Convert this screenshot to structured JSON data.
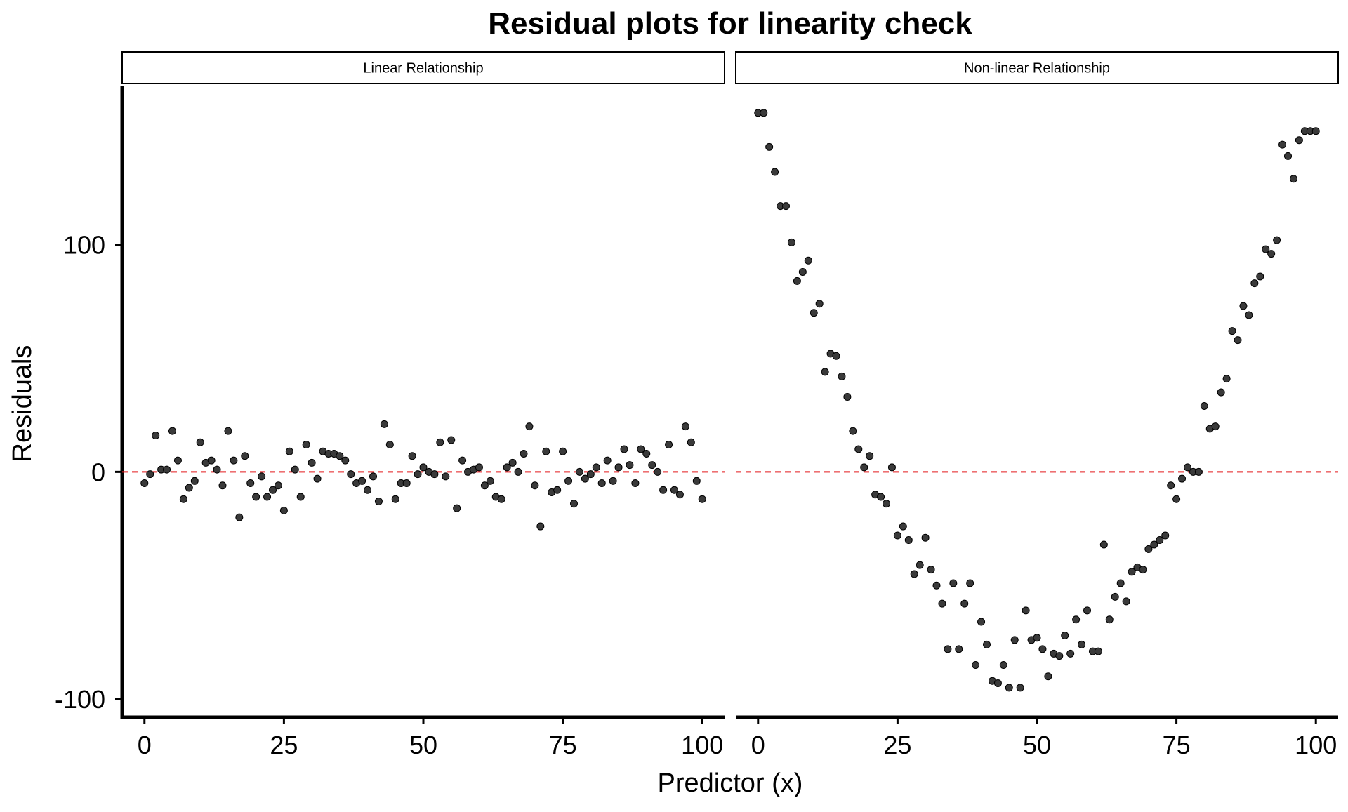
{
  "chart_data": {
    "type": "scatter",
    "title": "Residual plots for linearity check",
    "xlabel": "Predictor (x)",
    "ylabel": "Residuals",
    "xlim": [
      -4,
      104
    ],
    "ylim": [
      -108,
      170
    ],
    "x_ticks": [
      0,
      25,
      50,
      75,
      100
    ],
    "x_tick_labels": [
      "0",
      "25",
      "50",
      "75",
      "100"
    ],
    "y_ticks": [
      -100,
      0,
      100
    ],
    "y_tick_labels": [
      "-100",
      "0",
      "100"
    ],
    "reference_line": {
      "y": 0,
      "style": "dashed",
      "color": "#e41a1c"
    },
    "grid": false,
    "point_color": "#3a3a3a",
    "panels": [
      {
        "name": "Linear Relationship",
        "x": [
          0,
          1,
          2,
          3,
          4,
          5,
          6,
          7,
          8,
          9,
          10,
          11,
          12,
          13,
          14,
          15,
          16,
          17,
          18,
          19,
          20,
          21,
          22,
          23,
          24,
          25,
          26,
          27,
          28,
          29,
          30,
          31,
          32,
          33,
          34,
          35,
          36,
          37,
          38,
          39,
          40,
          41,
          42,
          43,
          44,
          45,
          46,
          47,
          48,
          49,
          50,
          51,
          52,
          53,
          54,
          55,
          56,
          57,
          58,
          59,
          60,
          61,
          62,
          63,
          64,
          65,
          66,
          67,
          68,
          69,
          70,
          71,
          72,
          73,
          74,
          75,
          76,
          77,
          78,
          79,
          80,
          81,
          82,
          83,
          84,
          85,
          86,
          87,
          88,
          89,
          90,
          91,
          92,
          93,
          94,
          95,
          96,
          97,
          98,
          99,
          100
        ],
        "y": [
          -5,
          -1,
          16,
          1,
          1,
          18,
          5,
          -12,
          -7,
          -4,
          13,
          4,
          5,
          1,
          -6,
          18,
          5,
          -20,
          7,
          -5,
          -11,
          -2,
          -11,
          -8,
          -6,
          -17,
          9,
          1,
          -11,
          12,
          4,
          -3,
          9,
          8,
          8,
          7,
          5,
          -1,
          -5,
          -4,
          -8,
          -2,
          -13,
          21,
          12,
          -12,
          -5,
          -5,
          7,
          -1,
          2,
          0,
          -1,
          13,
          -2,
          14,
          -16,
          5,
          0,
          1,
          2,
          -6,
          -4,
          -11,
          -12,
          2,
          4,
          0,
          8,
          20,
          -6,
          -24,
          9,
          -9,
          -8,
          9,
          -4,
          -14,
          0,
          -3,
          -1,
          2,
          -5,
          5,
          -4,
          2,
          10,
          3,
          -5,
          10,
          8,
          3,
          0,
          -8,
          12,
          -8,
          -10,
          20,
          13,
          -4,
          -12
        ]
      },
      {
        "name": "Non-linear Relationship",
        "x": [
          0,
          1,
          2,
          3,
          4,
          5,
          6,
          7,
          8,
          9,
          10,
          11,
          12,
          13,
          14,
          15,
          16,
          17,
          18,
          19,
          20,
          21,
          22,
          23,
          24,
          25,
          26,
          27,
          28,
          29,
          30,
          31,
          32,
          33,
          34,
          35,
          36,
          37,
          38,
          39,
          40,
          41,
          42,
          43,
          44,
          45,
          46,
          47,
          48,
          49,
          50,
          51,
          52,
          53,
          54,
          55,
          56,
          57,
          58,
          59,
          60,
          61,
          62,
          63,
          64,
          65,
          66,
          67,
          68,
          69,
          70,
          71,
          72,
          73,
          74,
          75,
          76,
          77,
          78,
          79,
          80,
          81,
          82,
          83,
          84,
          85,
          86,
          87,
          88,
          89,
          90,
          91,
          92,
          93,
          94,
          95,
          96,
          97,
          98,
          99,
          100
        ],
        "y": [
          158,
          158,
          143,
          132,
          117,
          117,
          101,
          84,
          88,
          93,
          70,
          74,
          44,
          52,
          51,
          42,
          33,
          18,
          10,
          2,
          7,
          -10,
          -11,
          -14,
          2,
          -28,
          -24,
          -30,
          -45,
          -41,
          -29,
          -43,
          -50,
          -58,
          -78,
          -49,
          -78,
          -58,
          -49,
          -85,
          -66,
          -76,
          -92,
          -93,
          -85,
          -95,
          -74,
          -95,
          -61,
          -74,
          -73,
          -78,
          -90,
          -80,
          -81,
          -72,
          -80,
          -65,
          -76,
          -61,
          -79,
          -79,
          -32,
          -65,
          -55,
          -49,
          -57,
          -44,
          -42,
          -43,
          -34,
          -32,
          -30,
          -28,
          -6,
          -12,
          -3,
          2,
          0,
          0,
          29,
          19,
          20,
          35,
          41,
          62,
          58,
          73,
          69,
          83,
          86,
          98,
          96,
          102,
          144,
          139,
          129,
          146,
          150,
          150,
          150
        ]
      }
    ]
  }
}
